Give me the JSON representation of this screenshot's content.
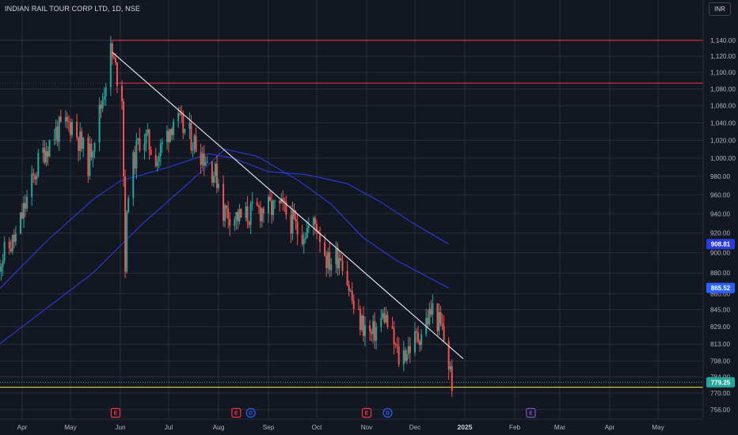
{
  "header": {
    "title": "INDIAN RAIL TOUR CORP LTD, 1D, NSE",
    "currency": "INR"
  },
  "colors": {
    "background": "#131722",
    "up": "#26a69a",
    "down": "#ef5350",
    "ma": "#2b3bdc",
    "trendline": "#e0e3eb",
    "resistance": "#f23645",
    "support": "#ffeb3b",
    "grid": "#2a2e39"
  },
  "chart_data": {
    "type": "candlestick",
    "x_axis": {
      "tick_labels": [
        "Apr",
        "May",
        "Jun",
        "Jul",
        "Aug",
        "Sep",
        "Oct",
        "Nov",
        "Dec",
        "2025",
        "Feb",
        "Mar",
        "Apr",
        "May"
      ],
      "tick_dates": [
        "2024-04-01",
        "2024-05-01",
        "2024-06-01",
        "2024-07-01",
        "2024-08-01",
        "2024-09-01",
        "2024-10-01",
        "2024-11-01",
        "2024-12-01",
        "2025-01-01",
        "2025-02-01",
        "2025-03-01",
        "2025-04-01",
        "2025-05-01"
      ],
      "bold_label": "2025"
    },
    "y_axis": {
      "tick_labels": [
        "1,140.00",
        "1,120.00",
        "1,100.00",
        "1,080.00",
        "1,060.00",
        "1,040.00",
        "1,020.00",
        "1,000.00",
        "980.00",
        "960.00",
        "940.00",
        "920.00",
        "900.00",
        "880.00",
        "860.00",
        "845.00",
        "829.00",
        "813.00",
        "798.00",
        "784.00",
        "770.00",
        "756.00"
      ],
      "tick_values": [
        1140,
        1120,
        1100,
        1080,
        1060,
        1040,
        1020,
        1000,
        980,
        960,
        940,
        920,
        900,
        880,
        860,
        845,
        829,
        813,
        798,
        784,
        770,
        756
      ],
      "scale": "log"
    },
    "price_labels": [
      {
        "text": "908.81",
        "value": 908.81,
        "color": "#2b3bdc"
      },
      {
        "text": "865.52",
        "value": 865.52,
        "color": "#2962ff"
      },
      {
        "text": "779.25",
        "value": 779.25,
        "color": "#26a69a"
      }
    ],
    "close_path": [
      [
        "2024-03-15",
        885
      ],
      [
        "2024-03-28",
        915
      ],
      [
        "2024-04-12",
        1000
      ],
      [
        "2024-04-22",
        1030
      ],
      [
        "2024-05-02",
        1040
      ],
      [
        "2024-05-12",
        995
      ],
      [
        "2024-05-20",
        1060
      ],
      [
        "2024-05-26",
        1125
      ],
      [
        "2024-06-02",
        1075
      ],
      [
        "2024-06-04",
        890
      ],
      [
        "2024-06-06",
        970
      ],
      [
        "2024-06-14",
        1030
      ],
      [
        "2024-06-24",
        1000
      ],
      [
        "2024-07-04",
        1045
      ],
      [
        "2024-07-14",
        1025
      ],
      [
        "2024-07-24",
        1000
      ],
      [
        "2024-08-01",
        975
      ],
      [
        "2024-08-02",
        945
      ],
      [
        "2024-08-15",
        935
      ],
      [
        "2024-08-28",
        945
      ],
      [
        "2024-09-10",
        945
      ],
      [
        "2024-09-20",
        920
      ],
      [
        "2024-10-01",
        930
      ],
      [
        "2024-10-08",
        890
      ],
      [
        "2024-10-16",
        900
      ],
      [
        "2024-10-25",
        840
      ],
      [
        "2024-11-04",
        820
      ],
      [
        "2024-11-12",
        840
      ],
      [
        "2024-11-21",
        800
      ],
      [
        "2024-12-03",
        820
      ],
      [
        "2024-12-12",
        845
      ],
      [
        "2024-12-18",
        825
      ],
      [
        "2024-12-24",
        780
      ]
    ],
    "moving_averages": [
      {
        "points": [
          [
            "2024-03-15",
            860
          ],
          [
            "2024-04-15",
            910
          ],
          [
            "2024-05-15",
            955
          ],
          [
            "2024-06-01",
            975
          ],
          [
            "2024-07-01",
            990
          ],
          [
            "2024-07-26",
            1005
          ],
          [
            "2024-08-10",
            1000
          ],
          [
            "2024-09-01",
            985
          ],
          [
            "2024-09-24",
            982
          ],
          [
            "2024-10-20",
            972
          ],
          [
            "2024-11-10",
            952
          ],
          [
            "2024-11-30",
            930
          ],
          [
            "2024-12-22",
            908.81
          ]
        ]
      },
      {
        "points": [
          [
            "2024-03-15",
            810
          ],
          [
            "2024-04-15",
            845
          ],
          [
            "2024-05-15",
            880
          ],
          [
            "2024-06-15",
            930
          ],
          [
            "2024-07-15",
            975
          ],
          [
            "2024-08-05",
            1010
          ],
          [
            "2024-08-25",
            1002
          ],
          [
            "2024-09-20",
            975
          ],
          [
            "2024-10-10",
            950
          ],
          [
            "2024-10-30",
            915
          ],
          [
            "2024-11-20",
            892
          ],
          [
            "2024-12-22",
            865.52
          ]
        ]
      }
    ],
    "trendline": {
      "from": [
        "2024-05-27",
        1125
      ],
      "to": [
        "2024-12-31",
        800
      ]
    },
    "horizontal_levels": [
      {
        "value": 1140,
        "role": "resistance",
        "from": "2024-05-26"
      },
      {
        "value": 1087,
        "role": "resistance",
        "from": "2024-05-29"
      },
      {
        "value": 775,
        "role": "support"
      },
      {
        "value": 779.25,
        "role": "last"
      }
    ],
    "events": [
      {
        "date": "2024-05-29",
        "label": "E",
        "color": "#f23645"
      },
      {
        "date": "2024-08-12",
        "label": "E",
        "color": "#f23645"
      },
      {
        "date": "2024-08-21",
        "label": "D",
        "color": "#2962ff"
      },
      {
        "date": "2024-11-01",
        "label": "E",
        "color": "#f23645"
      },
      {
        "date": "2024-11-14",
        "label": "D",
        "color": "#2962ff"
      },
      {
        "date": "2025-02-11",
        "label": "E",
        "color": "#7e57c2"
      }
    ]
  }
}
